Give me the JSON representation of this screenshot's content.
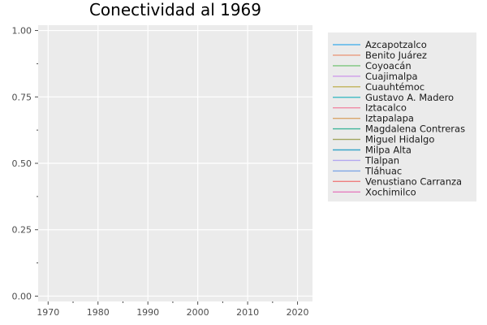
{
  "chart_data": {
    "type": "line",
    "title": "Conectividad al 1969",
    "xlabel": "",
    "ylabel": "",
    "xlim": [
      1968,
      2023
    ],
    "ylim": [
      -0.02,
      1.02
    ],
    "x_ticks": [
      1970,
      1980,
      1990,
      2000,
      2010,
      2020
    ],
    "x_minor_ticks": [
      1975,
      1985,
      1995,
      2005,
      2015
    ],
    "y_ticks": [
      0.0,
      0.25,
      0.5,
      0.75,
      1.0
    ],
    "y_tick_labels": [
      "0.00",
      "0.25",
      "0.50",
      "0.75",
      "1.00"
    ],
    "y_minor_ticks": [
      0.125,
      0.375,
      0.625,
      0.875
    ],
    "grid": true,
    "legend_position": "right",
    "plot_background": "#ebebeb",
    "grid_color": "#ffffff",
    "series": [
      {
        "name": "Azcapotzalco",
        "color": "#56b4e9",
        "points": []
      },
      {
        "name": "Benito Juárez",
        "color": "#e99a7c",
        "points": []
      },
      {
        "name": "Coyoacán",
        "color": "#7cc77e",
        "points": []
      },
      {
        "name": "Cuajimalpa",
        "color": "#cf9bea",
        "points": []
      },
      {
        "name": "Cuauhtémoc",
        "color": "#c2b35a",
        "points": []
      },
      {
        "name": "Gustavo A. Madero",
        "color": "#4dbfc7",
        "points": []
      },
      {
        "name": "Iztacalco",
        "color": "#f08aa6",
        "points": []
      },
      {
        "name": "Iztapalapa",
        "color": "#d9a66b",
        "points": []
      },
      {
        "name": "Magdalena Contreras",
        "color": "#3fb59a",
        "points": []
      },
      {
        "name": "Miguel Hidalgo",
        "color": "#a0a55e",
        "points": []
      },
      {
        "name": "Milpa Alta",
        "color": "#3ba6c9",
        "points": []
      },
      {
        "name": "Tlalpan",
        "color": "#b3a8ef",
        "points": []
      },
      {
        "name": "Tláhuac",
        "color": "#7ea6e6",
        "points": []
      },
      {
        "name": "Venustiano Carranza",
        "color": "#ee7f7f",
        "points": []
      },
      {
        "name": "Xochimilco",
        "color": "#e67fc0",
        "points": []
      }
    ]
  }
}
